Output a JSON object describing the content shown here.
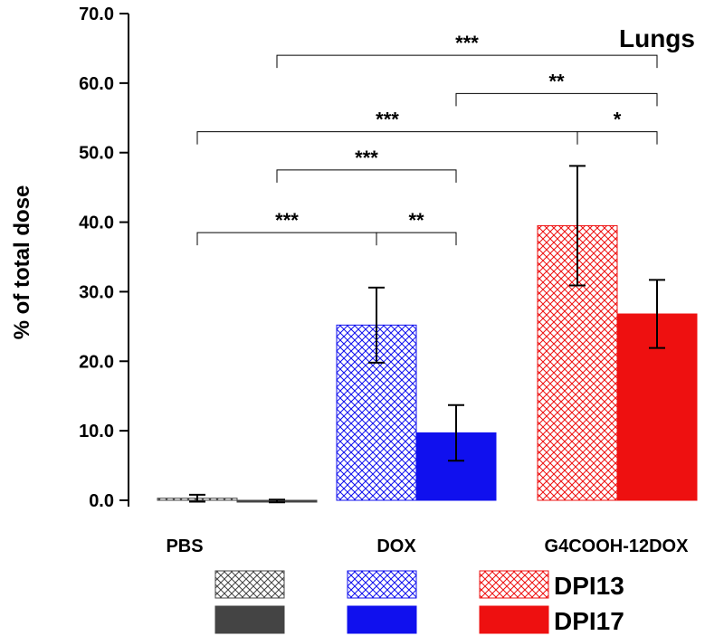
{
  "chart_data": {
    "type": "bar",
    "title": "Lungs",
    "ylabel": "% of total dose",
    "xlabel": "",
    "ylim": [
      0,
      70
    ],
    "yticks": [
      "0.0",
      "10.0",
      "20.0",
      "30.0",
      "40.0",
      "50.0",
      "60.0",
      "70.0"
    ],
    "categories": [
      "PBS",
      "DOX",
      "G4COOH-12DOX"
    ],
    "series": [
      {
        "name": "DPI13",
        "pattern": "hatched",
        "values": [
          0.3,
          25.2,
          39.5
        ],
        "errors": [
          0.5,
          5.4,
          8.6
        ]
      },
      {
        "name": "DPI17",
        "pattern": "solid",
        "values": [
          -0.1,
          9.7,
          26.8
        ],
        "errors": [
          0.2,
          4.0,
          4.9
        ]
      }
    ],
    "bar_colors": [
      "#444444",
      "#1010ee",
      "#ee1010"
    ],
    "significance": [
      {
        "label": "***",
        "from": {
          "category": 0,
          "series": 0
        },
        "to": {
          "category": 1,
          "series": 0
        },
        "y": 38.5
      },
      {
        "label": "**",
        "from": {
          "category": 1,
          "series": 0
        },
        "to": {
          "category": 1,
          "series": 1
        },
        "y": 38.5
      },
      {
        "label": "***",
        "from": {
          "category": 0,
          "series": 1
        },
        "to": {
          "category": 1,
          "series": 1
        },
        "y": 47.5
      },
      {
        "label": "***",
        "from": {
          "category": 0,
          "series": 0
        },
        "to": {
          "category": 2,
          "series": 0
        },
        "y": 53.0
      },
      {
        "label": "*",
        "from": {
          "category": 2,
          "series": 0
        },
        "to": {
          "category": 2,
          "series": 1
        },
        "y": 53.0
      },
      {
        "label": "**",
        "from": {
          "category": 1,
          "series": 1
        },
        "to": {
          "category": 2,
          "series": 1
        },
        "y": 58.5
      },
      {
        "label": "***",
        "from": {
          "category": 0,
          "series": 1
        },
        "to": {
          "category": 2,
          "series": 1
        },
        "y": 64.0
      }
    ],
    "legend": {
      "rows": [
        {
          "label": "DPI13",
          "pattern": "hatched"
        },
        {
          "label": "DPI17",
          "pattern": "solid"
        }
      ]
    }
  }
}
